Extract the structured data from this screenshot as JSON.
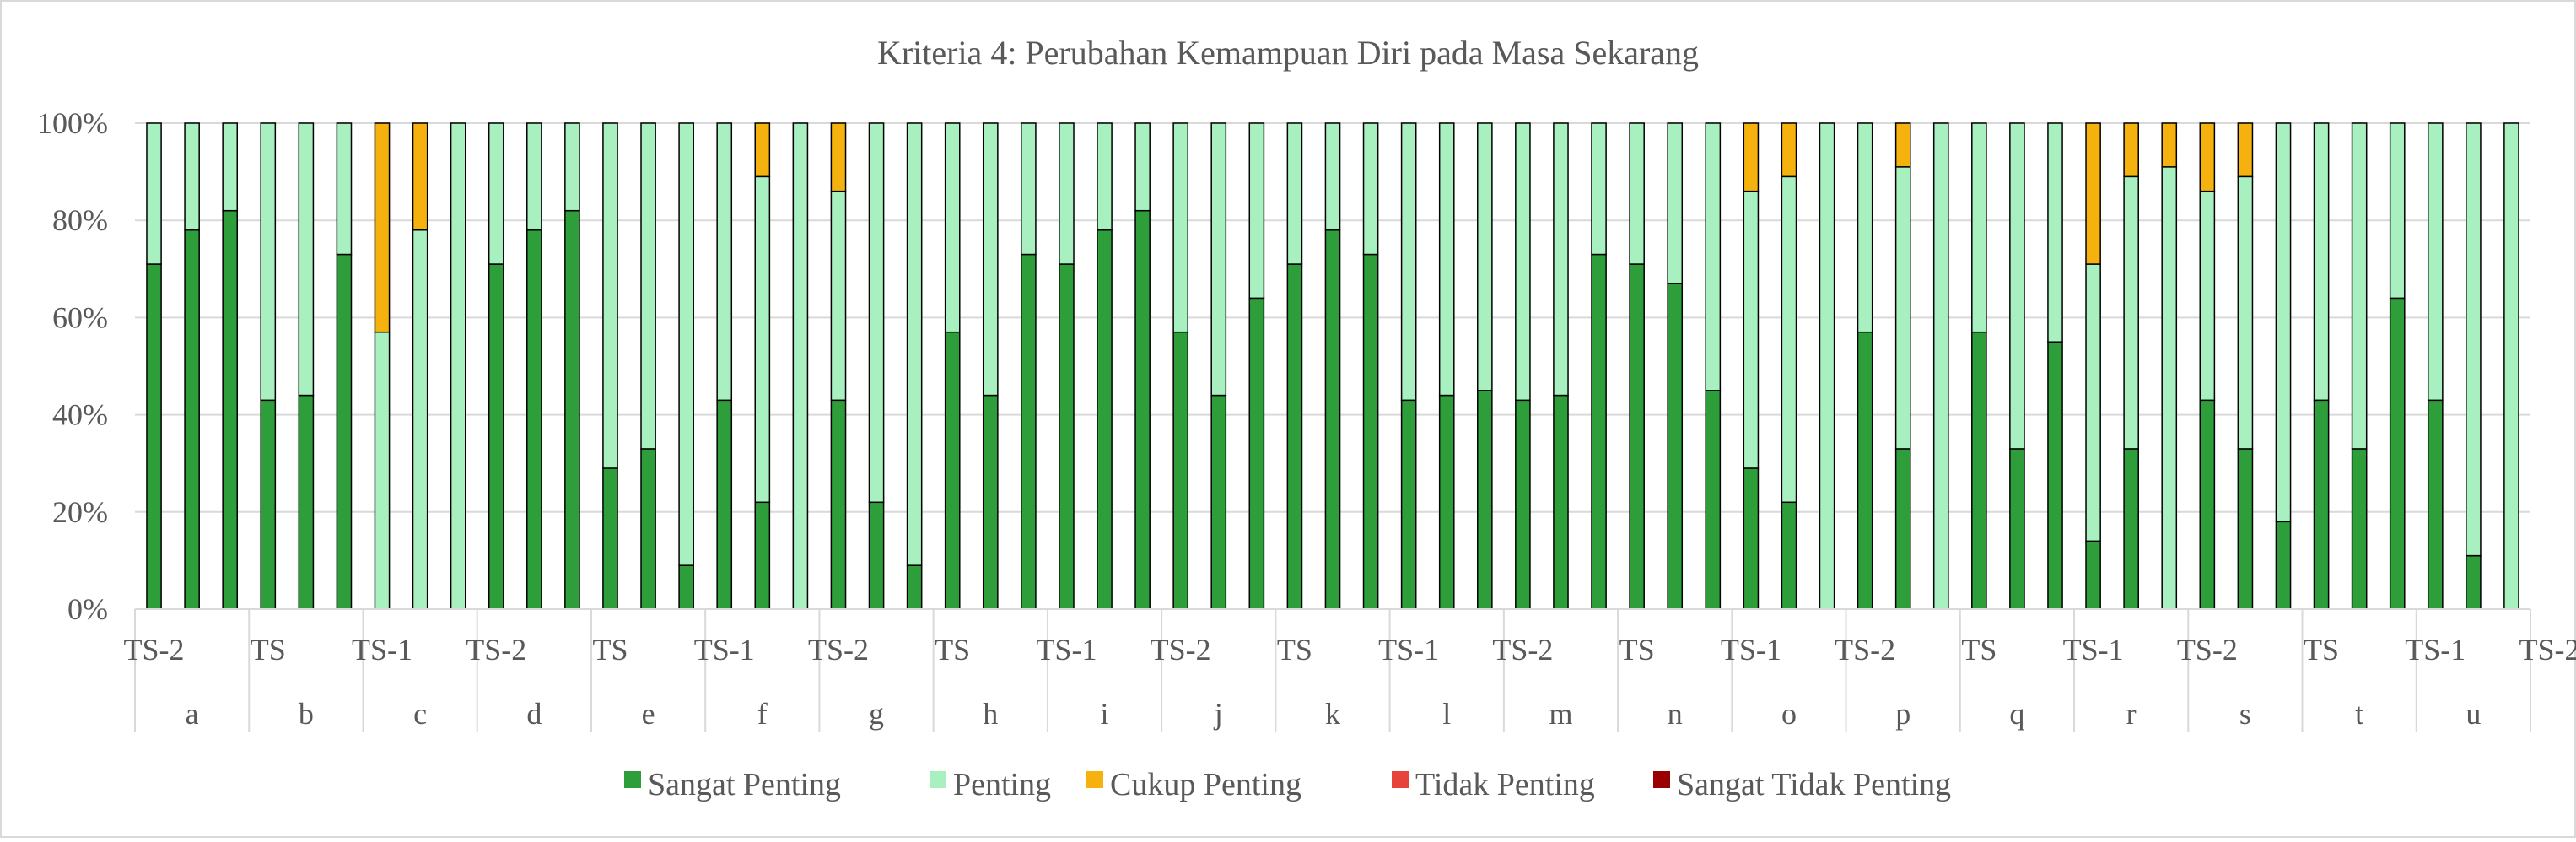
{
  "chart_data": {
    "type": "bar",
    "stacked": "percent",
    "title": "Kriteria 4: Perubahan Kemampuan Diri pada Masa Sekarang",
    "ylim": [
      0,
      100
    ],
    "y_ticks": [
      "0%",
      "20%",
      "40%",
      "60%",
      "80%",
      "100%"
    ],
    "grid": true,
    "legend_position": "bottom",
    "groups": [
      "a",
      "b",
      "c",
      "d",
      "e",
      "f",
      "g",
      "h",
      "i",
      "j",
      "k",
      "l",
      "m",
      "n",
      "o",
      "p",
      "q",
      "r",
      "s",
      "t",
      "u"
    ],
    "subcategories": [
      "TS-2",
      "TS-1",
      "TS"
    ],
    "x_tick_labels": [
      "TS-2",
      "TS",
      "TS-1",
      "TS-2",
      "TS",
      "TS-1",
      "TS-2",
      "TS",
      "TS-1",
      "TS-2",
      "TS",
      "TS-1",
      "TS-2",
      "TS",
      "TS-1",
      "TS-2",
      "TS",
      "TS-1",
      "TS-2",
      "TS",
      "TS-1",
      "TS-2",
      "TS"
    ],
    "series": [
      {
        "name": "Sangat Penting",
        "color": "#2e9e3a",
        "values": [
          71,
          78,
          82,
          43,
          44,
          73,
          0,
          0,
          0,
          71,
          78,
          82,
          29,
          33,
          9,
          43,
          22,
          0,
          43,
          22,
          9,
          57,
          44,
          73,
          71,
          78,
          82,
          57,
          44,
          64,
          71,
          78,
          73,
          43,
          44,
          45,
          43,
          44,
          73,
          71,
          67,
          45,
          29,
          22,
          0,
          57,
          33,
          0,
          57,
          33,
          55,
          14,
          33,
          0,
          43,
          33,
          18,
          43,
          33,
          64,
          43,
          11,
          0
        ]
      },
      {
        "name": "Penting",
        "color": "#a9f0c0",
        "values": [
          29,
          22,
          18,
          57,
          56,
          27,
          57,
          78,
          100,
          29,
          22,
          18,
          71,
          67,
          91,
          57,
          67,
          100,
          43,
          78,
          91,
          43,
          56,
          27,
          29,
          22,
          18,
          43,
          56,
          36,
          29,
          22,
          27,
          57,
          56,
          55,
          57,
          56,
          27,
          29,
          33,
          55,
          57,
          67,
          100,
          43,
          58,
          100,
          43,
          67,
          45,
          57,
          56,
          91,
          43,
          56,
          82,
          57,
          67,
          36,
          57,
          89,
          100
        ]
      },
      {
        "name": "Cukup Penting",
        "color": "#f5b20e",
        "values": [
          0,
          0,
          0,
          0,
          0,
          0,
          43,
          22,
          0,
          0,
          0,
          0,
          0,
          0,
          0,
          0,
          11,
          0,
          14,
          0,
          0,
          0,
          0,
          0,
          0,
          0,
          0,
          0,
          0,
          0,
          0,
          0,
          0,
          0,
          0,
          0,
          0,
          0,
          0,
          0,
          0,
          0,
          14,
          11,
          0,
          0,
          9,
          0,
          0,
          0,
          0,
          29,
          11,
          9,
          14,
          11,
          0,
          0,
          0,
          0,
          0,
          0,
          0
        ]
      },
      {
        "name": "Tidak Penting",
        "color": "#e8433a",
        "values": [
          0,
          0,
          0,
          0,
          0,
          0,
          0,
          0,
          0,
          0,
          0,
          0,
          0,
          0,
          0,
          0,
          0,
          0,
          0,
          0,
          0,
          0,
          0,
          0,
          0,
          0,
          0,
          0,
          0,
          0,
          0,
          0,
          0,
          0,
          0,
          0,
          0,
          0,
          0,
          0,
          0,
          0,
          0,
          0,
          0,
          0,
          0,
          0,
          0,
          0,
          0,
          0,
          0,
          0,
          0,
          0,
          0,
          0,
          0,
          0,
          0,
          0,
          0
        ]
      },
      {
        "name": "Sangat Tidak Penting",
        "color": "#9b0000",
        "values": [
          0,
          0,
          0,
          0,
          0,
          0,
          0,
          0,
          0,
          0,
          0,
          0,
          0,
          0,
          0,
          0,
          0,
          0,
          0,
          0,
          0,
          0,
          0,
          0,
          0,
          0,
          0,
          0,
          0,
          0,
          0,
          0,
          0,
          0,
          0,
          0,
          0,
          0,
          0,
          0,
          0,
          0,
          0,
          0,
          0,
          0,
          0,
          0,
          0,
          0,
          0,
          0,
          0,
          0,
          0,
          0,
          0,
          0,
          0,
          0,
          0,
          0,
          0
        ]
      }
    ]
  }
}
